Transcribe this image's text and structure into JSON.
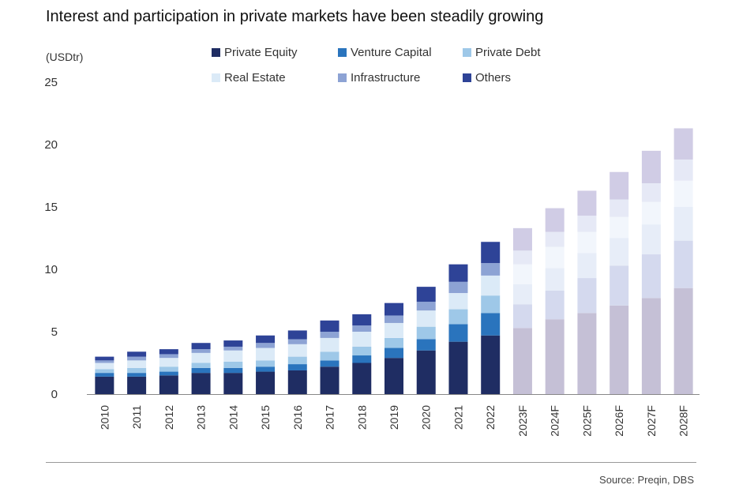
{
  "chart_data": {
    "type": "bar",
    "stacked": true,
    "title": "Interest and participation in private markets have been steadily growing",
    "ylabel": "(USDtr)",
    "xlabel": "",
    "ylim": [
      0,
      25
    ],
    "yticks": [
      0,
      5,
      10,
      15,
      20,
      25
    ],
    "categories": [
      "2010",
      "2011",
      "2012",
      "2013",
      "2014",
      "2015",
      "2016",
      "2017",
      "2018",
      "2019",
      "2020",
      "2021",
      "2022",
      "2023F",
      "2024F",
      "2025F",
      "2026F",
      "2027F",
      "2028F"
    ],
    "forecast_start_index": 13,
    "series": [
      {
        "name": "Private Equity",
        "color": "#1f2d63",
        "values": [
          1.4,
          1.4,
          1.5,
          1.7,
          1.7,
          1.8,
          1.9,
          2.2,
          2.5,
          2.9,
          3.5,
          4.2,
          4.7,
          5.3,
          6.0,
          6.5,
          7.1,
          7.7,
          8.5
        ]
      },
      {
        "name": "Venture Capital",
        "color": "#2a74bd",
        "values": [
          0.3,
          0.3,
          0.3,
          0.4,
          0.4,
          0.4,
          0.5,
          0.5,
          0.6,
          0.8,
          0.9,
          1.4,
          1.8,
          1.9,
          2.3,
          2.8,
          3.2,
          3.5,
          3.8
        ]
      },
      {
        "name": "Private Debt",
        "color": "#9ec8e8",
        "values": [
          0.3,
          0.4,
          0.4,
          0.4,
          0.5,
          0.5,
          0.6,
          0.7,
          0.7,
          0.8,
          1.0,
          1.2,
          1.4,
          1.6,
          1.8,
          2.0,
          2.2,
          2.4,
          2.7
        ]
      },
      {
        "name": "Real Estate",
        "color": "#dbeaf7",
        "values": [
          0.5,
          0.6,
          0.7,
          0.8,
          0.9,
          1.0,
          1.0,
          1.1,
          1.2,
          1.2,
          1.3,
          1.3,
          1.6,
          1.6,
          1.7,
          1.7,
          1.7,
          1.8,
          2.1
        ]
      },
      {
        "name": "Infrastructure",
        "color": "#8da3d4",
        "values": [
          0.2,
          0.3,
          0.3,
          0.3,
          0.3,
          0.4,
          0.4,
          0.5,
          0.5,
          0.6,
          0.7,
          0.9,
          1.0,
          1.1,
          1.2,
          1.3,
          1.4,
          1.5,
          1.7
        ]
      },
      {
        "name": "Others",
        "color": "#2e4397",
        "values": [
          0.3,
          0.4,
          0.4,
          0.5,
          0.5,
          0.6,
          0.7,
          0.9,
          0.9,
          1.0,
          1.2,
          1.4,
          1.7,
          1.8,
          1.9,
          2.0,
          2.2,
          2.6,
          2.5
        ]
      }
    ],
    "forecast_colors": [
      "#c5c0d6",
      "#d4d9ee",
      "#e7edf8",
      "#f2f6fc",
      "#e6e9f6",
      "#d0cce5"
    ],
    "legend_position": "top",
    "grid": false
  },
  "source": "Source: Preqin, DBS"
}
